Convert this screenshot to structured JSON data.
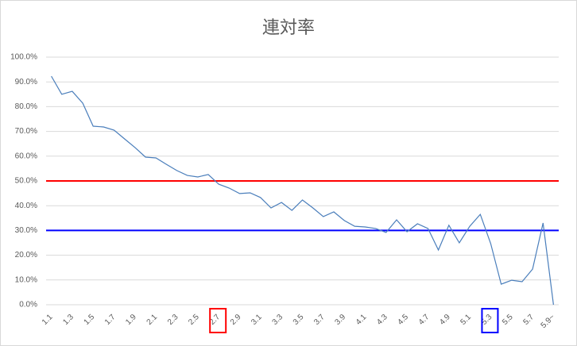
{
  "chart_data": {
    "type": "line",
    "title": "連対率",
    "categories": [
      "1.1",
      null,
      "1.3",
      null,
      "1.5",
      null,
      "1.7",
      null,
      "1.9",
      null,
      "2.1",
      null,
      "2.3",
      null,
      "2.5",
      null,
      "2.7",
      null,
      "2.9",
      null,
      "3.1",
      null,
      "3.3",
      null,
      "3.5",
      null,
      "3.7",
      null,
      "3.9",
      null,
      "4.1",
      null,
      "4.3",
      null,
      "4.5",
      null,
      "4.7",
      null,
      "4.9",
      null,
      "5.1",
      null,
      "5.3",
      null,
      "5.5",
      null,
      "5.7",
      null,
      "5.9~"
    ],
    "series": [
      {
        "color": "#4a7ebb",
        "values": [
          92.3,
          85,
          86.2,
          81.4,
          72.1,
          71.8,
          70.5,
          67,
          63.5,
          59.6,
          59.3,
          56.7,
          54.2,
          52.2,
          51.6,
          52.6,
          48.7,
          47.1,
          44.9,
          45.2,
          43.3,
          39.1,
          41.3,
          38.1,
          42.3,
          39.1,
          35.6,
          37.5,
          34,
          31.7,
          31.4,
          30.8,
          29.2,
          34.3,
          29.5,
          32.7,
          30.8,
          22.1,
          32.1,
          25,
          31.7,
          36.5,
          24.7,
          8.3,
          9.9,
          9.3,
          14.4,
          33,
          0
        ]
      }
    ],
    "ylim": [
      0,
      100
    ],
    "yticks": [
      {
        "value": 0,
        "label": "0.0%"
      },
      {
        "value": 10,
        "label": "10.0%"
      },
      {
        "value": 20,
        "label": "20.0%"
      },
      {
        "value": 30,
        "label": "30.0%"
      },
      {
        "value": 40,
        "label": "40.0%"
      },
      {
        "value": 50,
        "label": "50.0%"
      },
      {
        "value": 60,
        "label": "60.0%"
      },
      {
        "value": 70,
        "label": "70.0%"
      },
      {
        "value": 80,
        "label": "80.0%"
      },
      {
        "value": 90,
        "label": "90.0%"
      },
      {
        "value": 100,
        "label": "100.0%"
      }
    ],
    "grid": true,
    "reference_lines": [
      {
        "value": 50,
        "color": "#ff0000",
        "highlight_category": 16
      },
      {
        "value": 30,
        "color": "#0000ff",
        "highlight_category": 42
      }
    ]
  }
}
